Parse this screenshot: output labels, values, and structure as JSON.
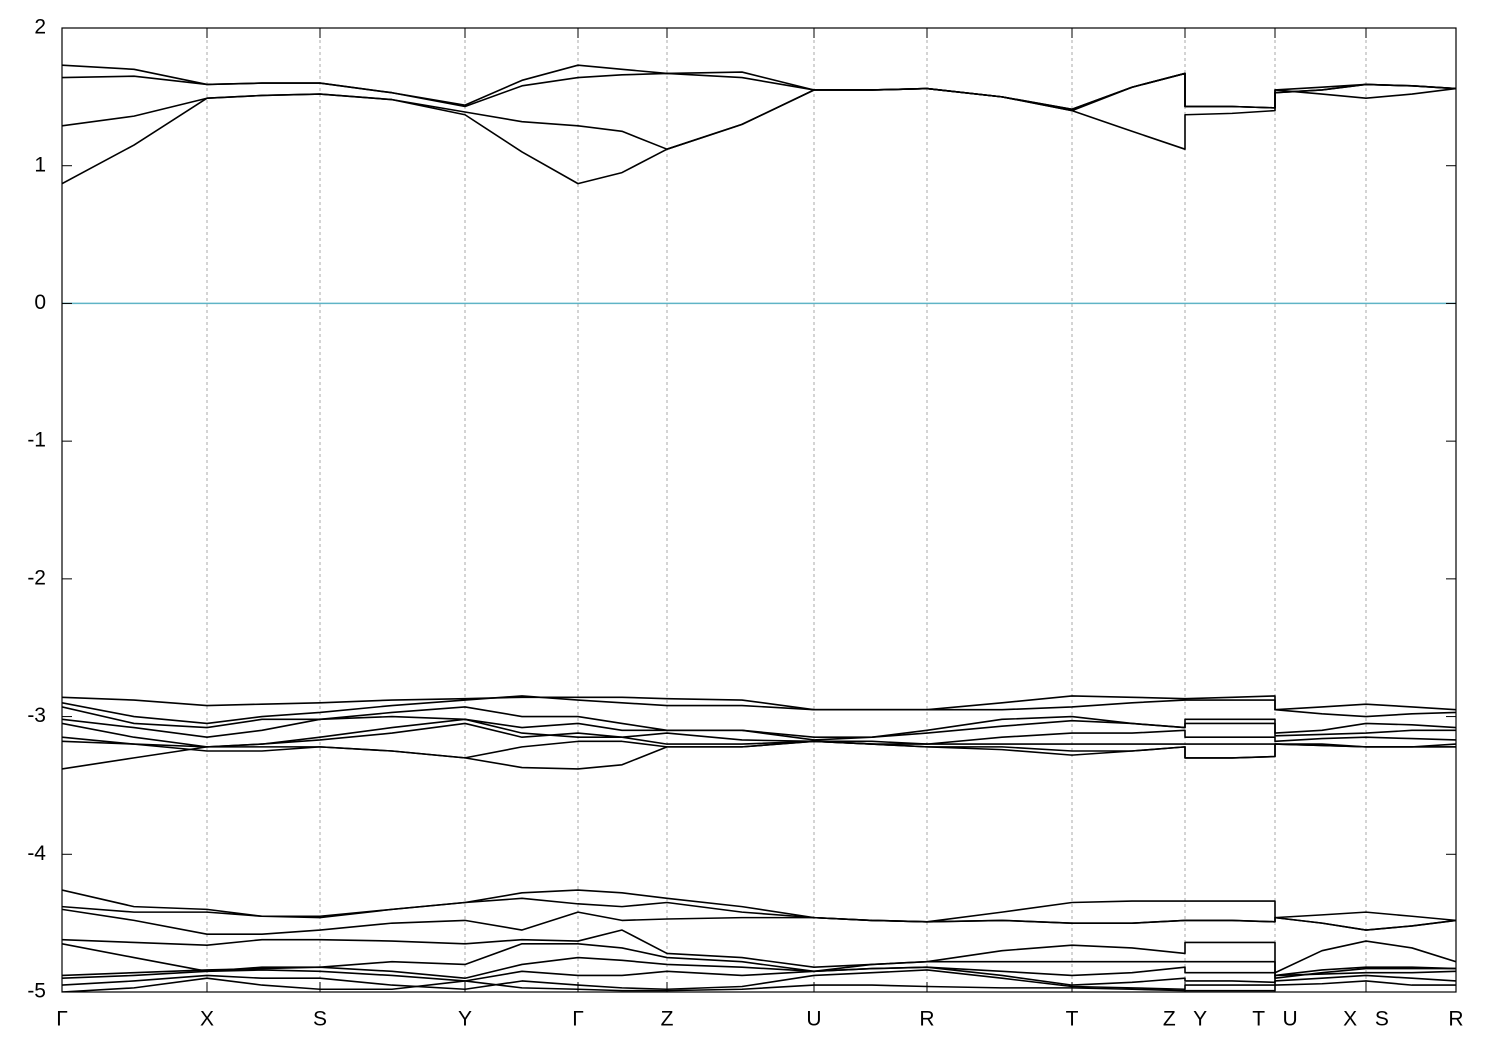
{
  "chart_data": {
    "type": "line",
    "color": "#000000",
    "hline": 0,
    "hline_color": "#5fb4c6",
    "grid": true,
    "xlim": [
      0,
      13.94
    ],
    "ylim": [
      -5,
      2
    ],
    "yticks": [
      2,
      1,
      0,
      -1,
      -2,
      -3,
      -4,
      -5
    ],
    "xticks": [
      {
        "value": 0,
        "label": "Γ"
      },
      {
        "value": 1.45,
        "label": "X"
      },
      {
        "value": 2.58,
        "label": "S"
      },
      {
        "value": 4.03,
        "label": "Y"
      },
      {
        "value": 5.16,
        "label": "Γ"
      },
      {
        "value": 6.05,
        "label": "Z"
      },
      {
        "value": 7.52,
        "label": "U"
      },
      {
        "value": 8.65,
        "label": "R"
      },
      {
        "value": 10.1,
        "label": "T"
      },
      {
        "value": 11.23,
        "label": "Z Y"
      },
      {
        "value": 12.13,
        "label": "T U"
      },
      {
        "value": 13.04,
        "label": "X S"
      },
      {
        "value": 13.94,
        "label": "R"
      }
    ],
    "x": [
      0,
      0.72,
      1.45,
      2.0,
      2.58,
      3.3,
      4.03,
      4.6,
      5.16,
      5.6,
      6.05,
      6.8,
      7.52,
      8.1,
      8.65,
      9.4,
      10.1,
      10.7,
      11.23,
      11.23,
      11.7,
      12.13,
      12.13,
      12.6,
      13.04,
      13.5,
      13.94
    ],
    "series": [
      {
        "values": [
          0.87,
          1.15,
          1.49,
          1.51,
          1.52,
          1.48,
          1.37,
          1.1,
          0.87,
          0.95,
          1.12,
          1.3,
          1.55,
          1.55,
          1.56,
          1.5,
          1.4,
          1.25,
          1.12,
          1.37,
          1.38,
          1.4,
          1.55,
          1.52,
          1.49,
          1.52,
          1.56
        ]
      },
      {
        "values": [
          1.29,
          1.36,
          1.49,
          1.51,
          1.52,
          1.48,
          1.39,
          1.32,
          1.29,
          1.25,
          1.12,
          1.3,
          1.55,
          1.55,
          1.56,
          1.5,
          1.4,
          1.57,
          1.67,
          1.43,
          1.43,
          1.42,
          1.55,
          1.57,
          1.59,
          1.58,
          1.56
        ]
      },
      {
        "values": [
          1.64,
          1.65,
          1.59,
          1.6,
          1.6,
          1.53,
          1.43,
          1.58,
          1.64,
          1.66,
          1.67,
          1.64,
          1.55,
          1.55,
          1.56,
          1.5,
          1.41,
          1.57,
          1.67,
          1.43,
          1.43,
          1.42,
          1.53,
          1.55,
          1.59,
          1.58,
          1.56
        ]
      },
      {
        "values": [
          1.73,
          1.7,
          1.59,
          1.6,
          1.6,
          1.53,
          1.44,
          1.62,
          1.73,
          1.7,
          1.67,
          1.68,
          1.55,
          1.55,
          1.56,
          1.5,
          1.41,
          1.57,
          1.67,
          1.43,
          1.43,
          1.42,
          1.53,
          1.55,
          1.59,
          1.58,
          1.56
        ]
      },
      {
        "values": [
          -2.86,
          -2.88,
          -2.92,
          -2.91,
          -2.9,
          -2.88,
          -2.87,
          -2.86,
          -2.86,
          -2.86,
          -2.87,
          -2.88,
          -2.95,
          -2.95,
          -2.95,
          -2.9,
          -2.85,
          -2.86,
          -2.87,
          -2.87,
          -2.86,
          -2.85,
          -2.95,
          -2.93,
          -2.91,
          -2.93,
          -2.95
        ]
      },
      {
        "values": [
          -2.9,
          -3.0,
          -3.05,
          -3.0,
          -2.97,
          -2.92,
          -2.88,
          -2.85,
          -2.88,
          -2.9,
          -2.92,
          -2.92,
          -2.95,
          -2.95,
          -2.95,
          -2.95,
          -2.93,
          -2.9,
          -2.88,
          -2.88,
          -2.88,
          -2.88,
          -2.95,
          -2.98,
          -3.0,
          -2.98,
          -2.97
        ]
      },
      {
        "values": [
          -2.93,
          -3.05,
          -3.08,
          -3.02,
          -3.02,
          -2.97,
          -2.93,
          -3.0,
          -3.0,
          -3.05,
          -3.1,
          -3.1,
          -3.15,
          -3.15,
          -3.1,
          -3.02,
          -3.0,
          -3.05,
          -3.08,
          -3.02,
          -3.02,
          -3.02,
          -3.12,
          -3.1,
          -3.05,
          -3.06,
          -3.08
        ]
      },
      {
        "values": [
          -3.02,
          -3.08,
          -3.15,
          -3.1,
          -3.02,
          -3.0,
          -3.02,
          -3.08,
          -3.05,
          -3.1,
          -3.1,
          -3.1,
          -3.17,
          -3.15,
          -3.12,
          -3.07,
          -3.03,
          -3.05,
          -3.08,
          -3.05,
          -3.05,
          -3.05,
          -3.14,
          -3.13,
          -3.12,
          -3.1,
          -3.1
        ]
      },
      {
        "values": [
          -3.05,
          -3.15,
          -3.22,
          -3.2,
          -3.15,
          -3.08,
          -3.02,
          -3.12,
          -3.15,
          -3.15,
          -3.12,
          -3.17,
          -3.18,
          -3.18,
          -3.2,
          -3.15,
          -3.12,
          -3.12,
          -3.1,
          -3.15,
          -3.15,
          -3.15,
          -3.18,
          -3.16,
          -3.15,
          -3.16,
          -3.17
        ]
      },
      {
        "values": [
          -3.15,
          -3.2,
          -3.22,
          -3.2,
          -3.17,
          -3.12,
          -3.05,
          -3.15,
          -3.12,
          -3.15,
          -3.2,
          -3.2,
          -3.18,
          -3.2,
          -3.2,
          -3.2,
          -3.2,
          -3.2,
          -3.2,
          -3.2,
          -3.2,
          -3.2,
          -3.2,
          -3.2,
          -3.22,
          -3.22,
          -3.2
        ]
      },
      {
        "values": [
          -3.18,
          -3.2,
          -3.25,
          -3.25,
          -3.22,
          -3.25,
          -3.3,
          -3.22,
          -3.18,
          -3.18,
          -3.22,
          -3.22,
          -3.18,
          -3.2,
          -3.22,
          -3.22,
          -3.25,
          -3.25,
          -3.22,
          -3.3,
          -3.3,
          -3.29,
          -3.2,
          -3.21,
          -3.22,
          -3.22,
          -3.22
        ]
      },
      {
        "values": [
          -3.38,
          -3.3,
          -3.22,
          -3.22,
          -3.22,
          -3.25,
          -3.3,
          -3.37,
          -3.38,
          -3.35,
          -3.22,
          -3.22,
          -3.18,
          -3.2,
          -3.22,
          -3.24,
          -3.28,
          -3.25,
          -3.22,
          -3.3,
          -3.3,
          -3.29,
          -3.2,
          -3.21,
          -3.22,
          -3.22,
          -3.22
        ]
      },
      {
        "values": [
          -4.26,
          -4.38,
          -4.4,
          -4.45,
          -4.45,
          -4.4,
          -4.35,
          -4.28,
          -4.26,
          -4.28,
          -4.32,
          -4.38,
          -4.46,
          -4.48,
          -4.49,
          -4.42,
          -4.35,
          -4.34,
          -4.34,
          -4.34,
          -4.34,
          -4.34,
          -4.46,
          -4.44,
          -4.42,
          -4.45,
          -4.48
        ]
      },
      {
        "values": [
          -4.38,
          -4.42,
          -4.42,
          -4.45,
          -4.46,
          -4.4,
          -4.35,
          -4.32,
          -4.36,
          -4.38,
          -4.35,
          -4.42,
          -4.46,
          -4.48,
          -4.49,
          -4.48,
          -4.5,
          -4.5,
          -4.48,
          -4.48,
          -4.48,
          -4.49,
          -4.46,
          -4.5,
          -4.55,
          -4.52,
          -4.48
        ]
      },
      {
        "values": [
          -4.4,
          -4.48,
          -4.58,
          -4.58,
          -4.55,
          -4.5,
          -4.48,
          -4.55,
          -4.42,
          -4.48,
          -4.47,
          -4.46,
          -4.46,
          -4.48,
          -4.49,
          -4.48,
          -4.5,
          -4.5,
          -4.48,
          -4.48,
          -4.48,
          -4.49,
          -4.46,
          -4.5,
          -4.55,
          -4.52,
          -4.48
        ]
      },
      {
        "values": [
          -4.62,
          -4.64,
          -4.66,
          -4.62,
          -4.62,
          -4.63,
          -4.65,
          -4.62,
          -4.63,
          -4.55,
          -4.72,
          -4.75,
          -4.82,
          -4.8,
          -4.78,
          -4.7,
          -4.66,
          -4.68,
          -4.72,
          -4.64,
          -4.64,
          -4.64,
          -4.86,
          -4.7,
          -4.63,
          -4.68,
          -4.78
        ]
      },
      {
        "values": [
          -4.65,
          -4.75,
          -4.85,
          -4.82,
          -4.82,
          -4.78,
          -4.8,
          -4.65,
          -4.65,
          -4.68,
          -4.75,
          -4.78,
          -4.85,
          -4.8,
          -4.78,
          -4.78,
          -4.78,
          -4.78,
          -4.78,
          -4.78,
          -4.78,
          -4.78,
          -4.88,
          -4.84,
          -4.82,
          -4.82,
          -4.83
        ]
      },
      {
        "values": [
          -4.88,
          -4.86,
          -4.84,
          -4.83,
          -4.82,
          -4.85,
          -4.9,
          -4.8,
          -4.75,
          -4.77,
          -4.8,
          -4.82,
          -4.85,
          -4.83,
          -4.82,
          -4.85,
          -4.88,
          -4.86,
          -4.82,
          -4.86,
          -4.86,
          -4.86,
          -4.9,
          -4.86,
          -4.83,
          -4.83,
          -4.83
        ]
      },
      {
        "values": [
          -4.9,
          -4.88,
          -4.85,
          -4.84,
          -4.85,
          -4.88,
          -4.92,
          -4.85,
          -4.88,
          -4.88,
          -4.85,
          -4.88,
          -4.85,
          -4.83,
          -4.82,
          -4.88,
          -4.95,
          -4.93,
          -4.9,
          -4.92,
          -4.92,
          -4.93,
          -4.88,
          -4.87,
          -4.86,
          -4.86,
          -4.85
        ]
      },
      {
        "values": [
          -4.95,
          -4.92,
          -4.88,
          -4.9,
          -4.9,
          -4.95,
          -4.98,
          -4.92,
          -4.95,
          -4.97,
          -4.98,
          -4.96,
          -4.88,
          -4.86,
          -4.84,
          -4.9,
          -4.96,
          -4.97,
          -4.98,
          -4.95,
          -4.95,
          -4.95,
          -4.92,
          -4.9,
          -4.88,
          -4.9,
          -4.92
        ]
      },
      {
        "values": [
          -5.0,
          -4.97,
          -4.9,
          -4.95,
          -4.98,
          -4.98,
          -4.92,
          -4.97,
          -4.98,
          -4.99,
          -4.99,
          -4.98,
          -4.95,
          -4.95,
          -4.96,
          -4.97,
          -4.97,
          -4.98,
          -4.99,
          -4.99,
          -4.99,
          -4.99,
          -4.95,
          -4.94,
          -4.92,
          -4.95,
          -4.95
        ]
      }
    ]
  }
}
